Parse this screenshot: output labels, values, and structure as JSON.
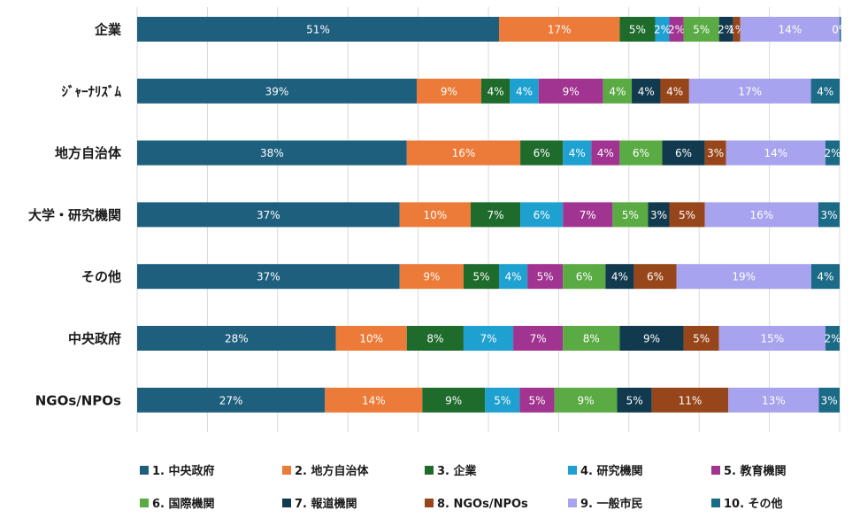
{
  "chart_data": {
    "type": "bar",
    "orientation": "horizontal",
    "stacked": true,
    "percent": true,
    "categories": [
      "企業",
      "ｼﾞｬｰﾅﾘｽﾞﾑ",
      "地方自治体",
      "大学・研究機関",
      "その他",
      "中央政府",
      "NGOs/NPOs"
    ],
    "series": [
      {
        "name": "1. 中央政府",
        "color": "#1f5f7e",
        "values": [
          51,
          39,
          38,
          37,
          37,
          28,
          27
        ]
      },
      {
        "name": "2. 地方自治体",
        "color": "#ec7a38",
        "values": [
          17,
          9,
          16,
          10,
          9,
          10,
          14
        ]
      },
      {
        "name": "3. 企業",
        "color": "#1e6b2c",
        "values": [
          5,
          4,
          6,
          7,
          5,
          8,
          9
        ]
      },
      {
        "name": "4. 研究機関",
        "color": "#1ea0d0",
        "values": [
          2,
          4,
          4,
          6,
          4,
          7,
          5
        ]
      },
      {
        "name": "5. 教育機関",
        "color": "#a03490",
        "values": [
          2,
          9,
          4,
          7,
          5,
          7,
          5
        ]
      },
      {
        "name": "6. 国際機関",
        "color": "#5aab44",
        "values": [
          5,
          4,
          6,
          5,
          6,
          8,
          9
        ]
      },
      {
        "name": "7. 報道機関",
        "color": "#123a4e",
        "values": [
          2,
          4,
          6,
          3,
          4,
          9,
          5
        ]
      },
      {
        "name": "8. NGOs/NPOs",
        "color": "#97451a",
        "values": [
          1,
          4,
          3,
          5,
          6,
          5,
          11
        ]
      },
      {
        "name": "9. 一般市民",
        "color": "#a7a3ee",
        "values": [
          14,
          17,
          14,
          16,
          19,
          15,
          13
        ]
      },
      {
        "name": "10. その他",
        "color": "#1b6a86",
        "values": [
          0,
          4,
          2,
          3,
          4,
          2,
          3
        ]
      }
    ],
    "data_labels_suffix": "%",
    "xlim": [
      0,
      100
    ],
    "grid": true,
    "legend_position": "bottom"
  }
}
